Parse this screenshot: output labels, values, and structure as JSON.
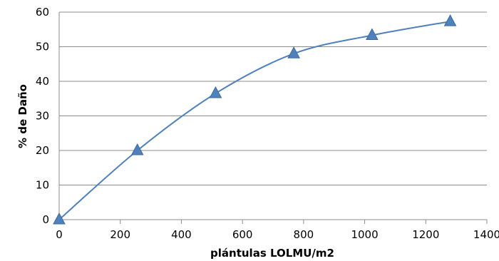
{
  "chart_data": {
    "type": "scatter",
    "xlabel": "plántulas LOLMU/m2",
    "ylabel": "% de Daño",
    "xlim": [
      0,
      1400
    ],
    "ylim": [
      0,
      60
    ],
    "x_ticks": [
      0,
      200,
      400,
      600,
      800,
      1000,
      1200,
      1400
    ],
    "y_ticks": [
      0,
      10,
      20,
      30,
      40,
      50,
      60
    ],
    "grid": "horizontal",
    "legend": "none",
    "series": [
      {
        "marker": "triangle",
        "line": "smoothed",
        "color": "#4f81bd",
        "points": [
          {
            "x": 0,
            "y": 0
          },
          {
            "x": 256,
            "y": 20
          },
          {
            "x": 512,
            "y": 36.5
          },
          {
            "x": 768,
            "y": 48
          },
          {
            "x": 1024,
            "y": 53.3
          },
          {
            "x": 1280,
            "y": 57.3
          }
        ]
      }
    ]
  }
}
